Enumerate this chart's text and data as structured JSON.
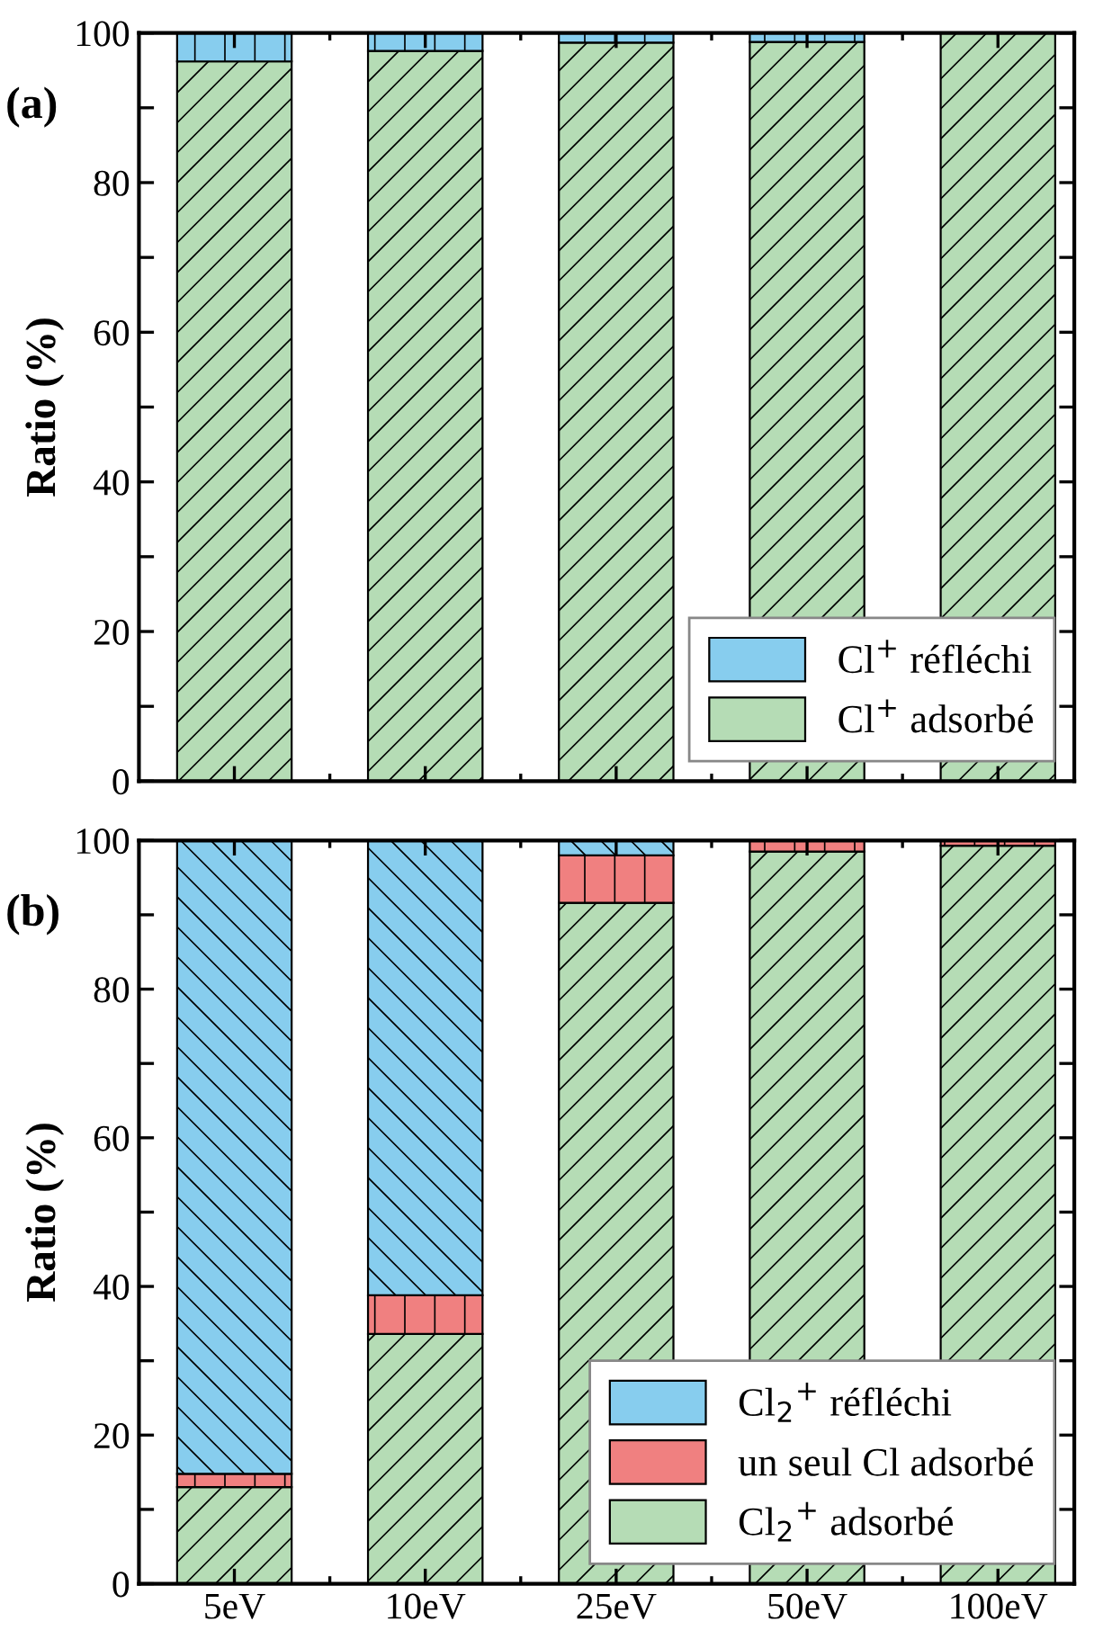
{
  "chart_data": [
    {
      "type": "bar",
      "stacked": true,
      "categories": [
        null,
        null,
        null,
        null,
        null
      ],
      "ylabel": "Ratio (%)",
      "annotations": [
        "(a)"
      ],
      "ylim": [
        0,
        100
      ],
      "yticks": [
        0,
        {
          "value": 10,
          "label": null
        },
        20,
        {
          "value": 30,
          "label": null
        },
        40,
        {
          "value": 50,
          "label": null
        },
        60,
        {
          "value": 70,
          "label": null
        },
        80,
        {
          "value": 90,
          "label": null
        },
        100
      ],
      "tick_labels": "y",
      "legend": "bottom right",
      "grid": false,
      "series": [
        {
          "name": "Cl$^{+}$ adsorbé",
          "color": "#b5dcb5",
          "values": [
            96.2,
            97.6,
            98.7,
            98.8,
            100
          ]
        },
        {
          "name": "Cl$^{+}$ réfléchi",
          "color": "#87cdee",
          "values": [
            3.8,
            2.4,
            1.3,
            1.2,
            null
          ]
        }
      ]
    },
    {
      "type": "bar",
      "stacked": true,
      "categories": [
        "5eV",
        "10eV",
        "25eV",
        "50eV",
        "100eV"
      ],
      "ylabel": "Ratio (%)",
      "annotations": [
        "(b)"
      ],
      "ylim": [
        0,
        100
      ],
      "yticks": [
        0,
        {
          "value": 10,
          "label": null
        },
        20,
        {
          "value": 30,
          "label": null
        },
        40,
        {
          "value": 50,
          "label": null
        },
        60,
        {
          "value": 70,
          "label": null
        },
        80,
        {
          "value": 90,
          "label": null
        },
        100
      ],
      "legend": "bottom right",
      "grid": false,
      "series": [
        {
          "name": "Cl$_{2}$$^{+}$ adsorbé",
          "color": "#b5dcb5",
          "values": [
            13,
            33.6,
            91.6,
            98.5,
            99.3
          ]
        },
        {
          "name": "un seul Cl adsorbé",
          "color": "#f08080",
          "values": [
            1.8,
            5.2,
            6.4,
            1.5,
            0.7
          ]
        },
        {
          "name": "Cl$_{2}$$^{+}$ réfléchi",
          "color": "#87cdee",
          "values": [
            85.2,
            61.2,
            2,
            null,
            null
          ]
        }
      ]
    }
  ]
}
